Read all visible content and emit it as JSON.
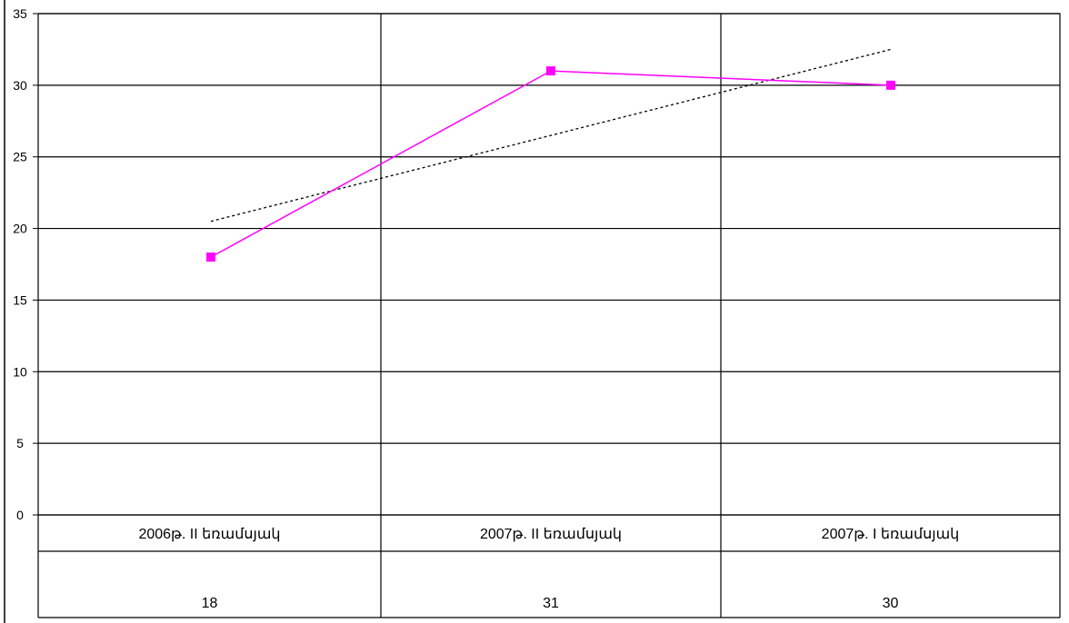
{
  "chart_data": {
    "type": "line",
    "categories": [
      "2006թ. II եռամսյակ",
      "2007թ. II եռամսյակ",
      "2007թ. I եռամսյակ"
    ],
    "series": [
      {
        "values": [
          18,
          31,
          30
        ],
        "color": "#ff00ff",
        "marker": "square"
      }
    ],
    "trendline": {
      "type": "linear",
      "values": [
        20.5,
        26.5,
        32.5
      ],
      "color": "#000000",
      "style": "dotted"
    },
    "ylim": [
      0,
      35
    ],
    "yticks": [
      0,
      5,
      10,
      15,
      20,
      25,
      30,
      35
    ],
    "grid": true,
    "data_table": true,
    "table_values": [
      "18",
      "31",
      "30"
    ]
  }
}
